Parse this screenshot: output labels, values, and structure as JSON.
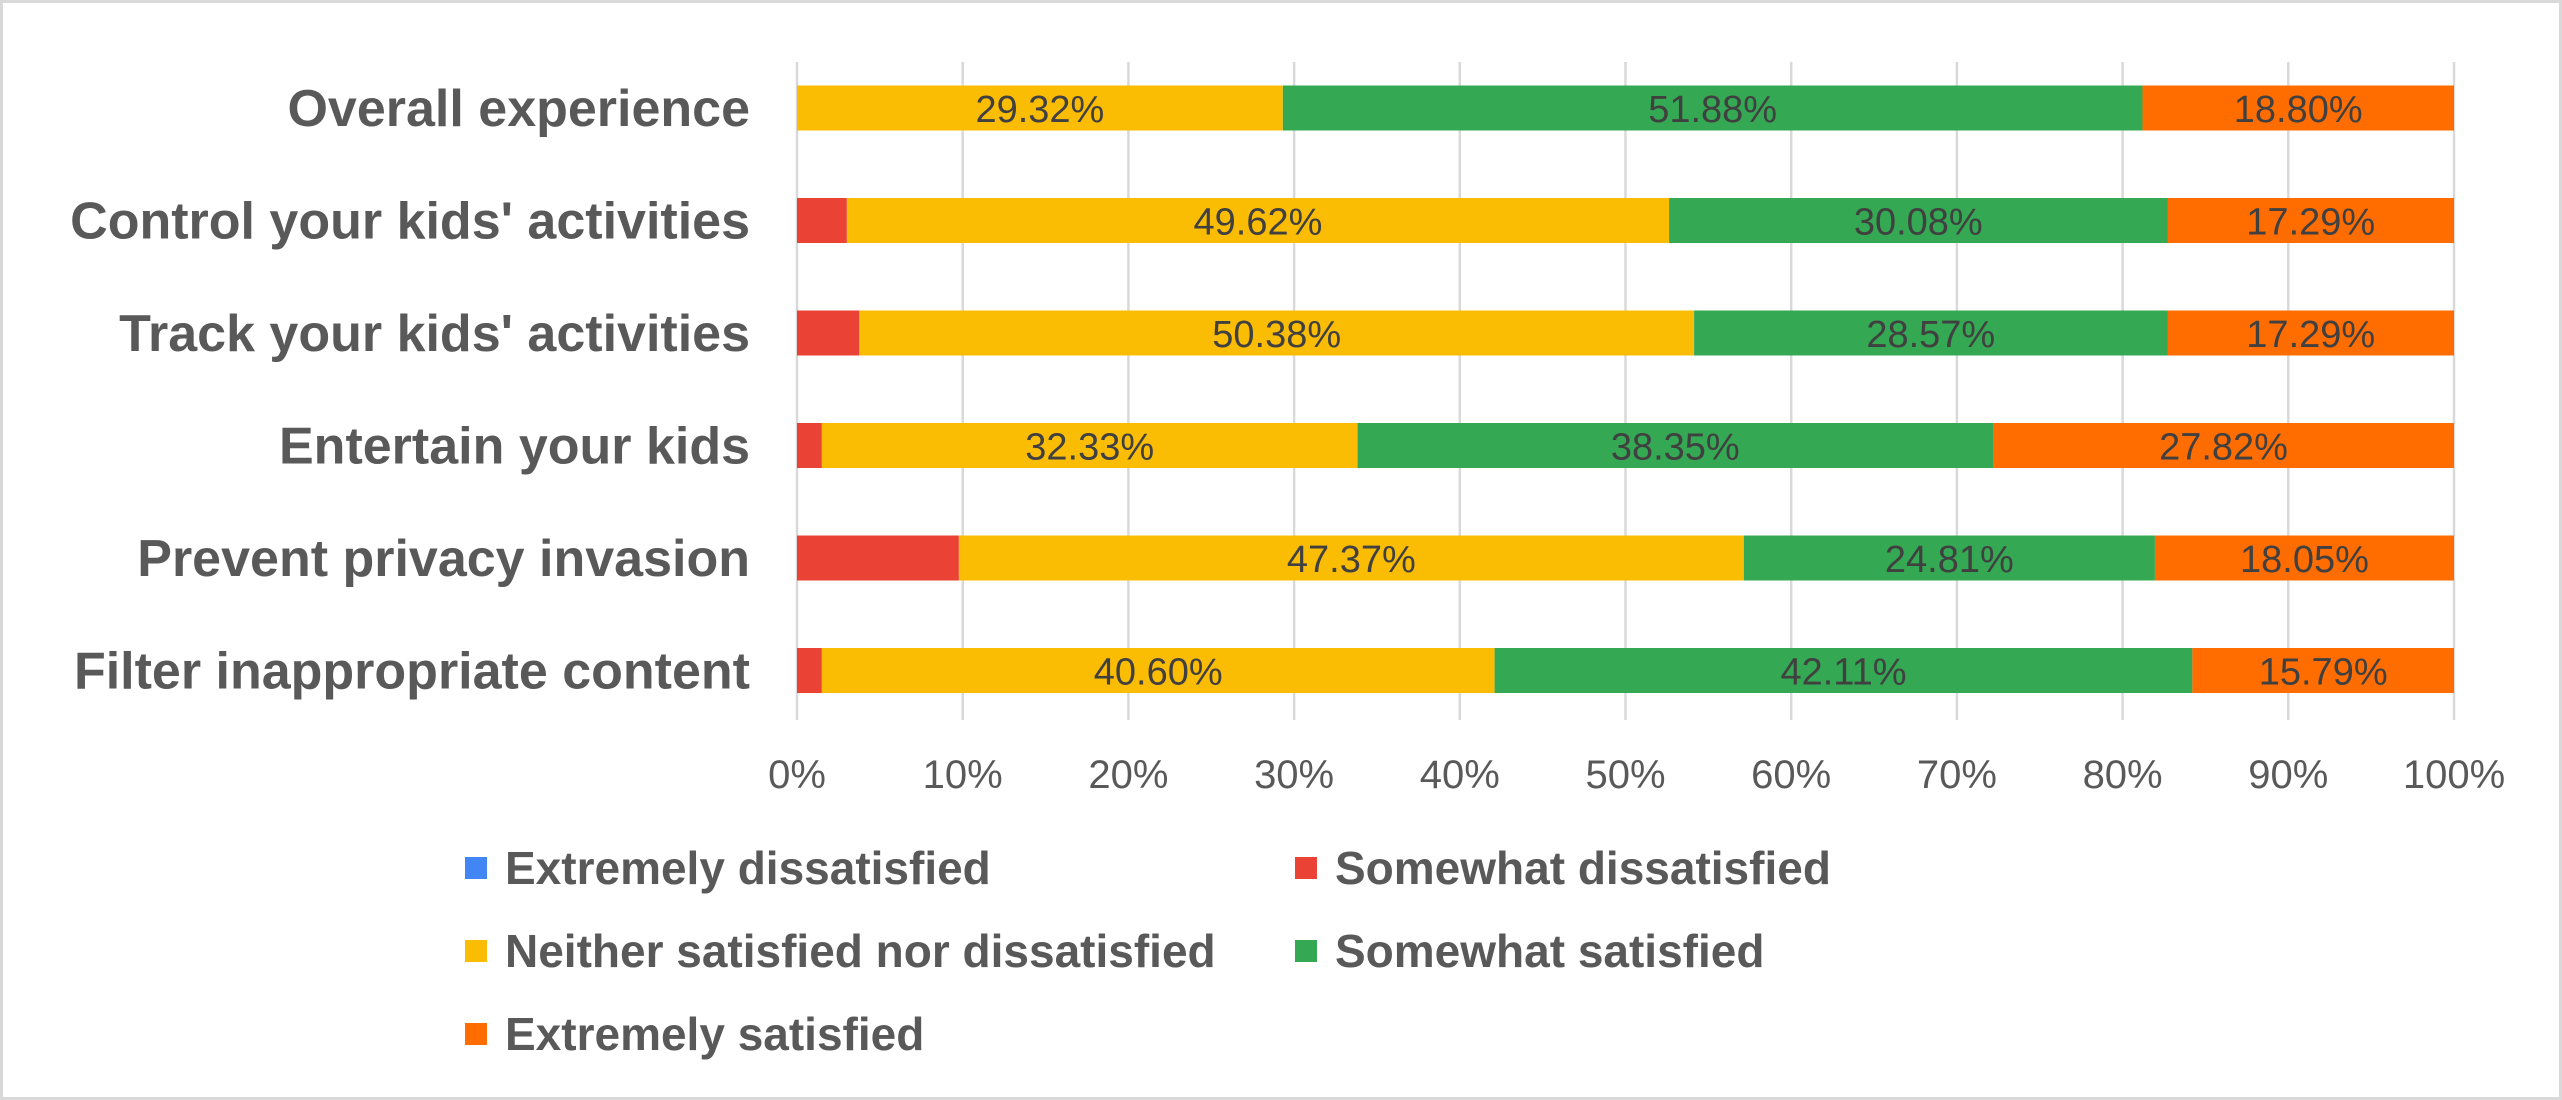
{
  "chart_data": {
    "type": "bar",
    "orientation": "horizontal",
    "stacked": "percent",
    "title": "",
    "xlabel": "",
    "ylabel": "",
    "xlim": [
      0,
      100
    ],
    "x_ticks": [
      "0%",
      "10%",
      "20%",
      "30%",
      "40%",
      "50%",
      "60%",
      "70%",
      "80%",
      "90%",
      "100%"
    ],
    "grid": true,
    "legend_position": "bottom",
    "categories": [
      "Overall experience",
      "Control your kids' activities",
      "Track your kids' activities",
      "Entertain your kids",
      "Prevent privacy invasion",
      "Filter inappropriate content"
    ],
    "series": [
      {
        "name": "Extremely dissatisfied",
        "color": "#4285f4",
        "values": [
          0,
          0,
          0,
          0,
          0,
          0
        ],
        "labels": [
          "",
          "",
          "",
          "",
          "",
          ""
        ]
      },
      {
        "name": "Somewhat dissatisfied",
        "color": "#ea4335",
        "values": [
          0,
          3.01,
          3.76,
          1.5,
          9.77,
          1.5
        ],
        "labels": [
          "",
          "",
          "",
          "",
          "",
          ""
        ]
      },
      {
        "name": "Neither satisfied nor dissatisfied",
        "color": "#fbbc04",
        "values": [
          29.32,
          49.62,
          50.38,
          32.33,
          47.37,
          40.6
        ],
        "labels": [
          "29.32%",
          "49.62%",
          "50.38%",
          "32.33%",
          "47.37%",
          "40.60%"
        ]
      },
      {
        "name": "Somewhat satisfied",
        "color": "#34a853",
        "values": [
          51.88,
          30.08,
          28.57,
          38.35,
          24.81,
          42.11
        ],
        "labels": [
          "51.88%",
          "30.08%",
          "28.57%",
          "38.35%",
          "24.81%",
          "42.11%"
        ]
      },
      {
        "name": "Extremely satisfied",
        "color": "#ff6d01",
        "values": [
          18.8,
          17.29,
          17.29,
          27.82,
          18.05,
          15.79
        ],
        "labels": [
          "18.80%",
          "17.29%",
          "17.29%",
          "27.82%",
          "18.05%",
          "15.79%"
        ]
      }
    ]
  }
}
